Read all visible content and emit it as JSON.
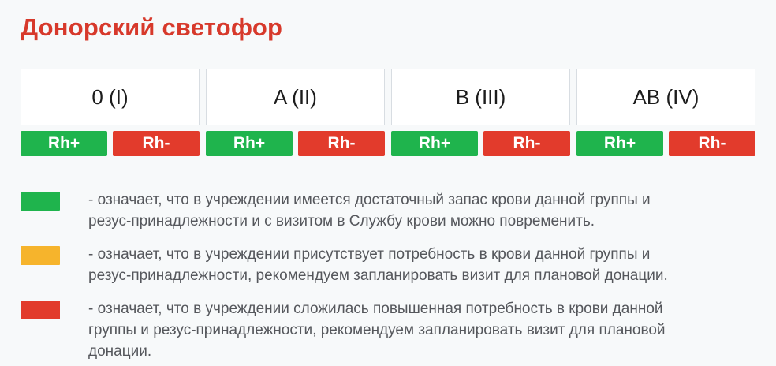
{
  "title": "Донорский светофор",
  "colors": {
    "green": "#1fb44d",
    "yellow": "#f6b42c",
    "red": "#e23b2c",
    "title": "#d7392b",
    "legend_text": "#55575c",
    "box_border": "#d8dde2",
    "background": "#f7f9fa",
    "group_label": "#1c1c1c",
    "cell_text": "#ffffff"
  },
  "blood_groups": [
    {
      "label": "0 (I)",
      "cells": [
        {
          "label": "Rh+",
          "status": "green"
        },
        {
          "label": "Rh-",
          "status": "red"
        }
      ]
    },
    {
      "label": "A (II)",
      "cells": [
        {
          "label": "Rh+",
          "status": "green"
        },
        {
          "label": "Rh-",
          "status": "red"
        }
      ]
    },
    {
      "label": "B (III)",
      "cells": [
        {
          "label": "Rh+",
          "status": "green"
        },
        {
          "label": "Rh-",
          "status": "red"
        }
      ]
    },
    {
      "label": "AB (IV)",
      "cells": [
        {
          "label": "Rh+",
          "status": "green"
        },
        {
          "label": "Rh-",
          "status": "red"
        }
      ]
    }
  ],
  "legend": [
    {
      "status": "green",
      "lines": [
        "- означает, что в учреждении имеется достаточный запас крови данной группы и",
        "резус-принадлежности и с визитом в Службу крови можно повременить."
      ]
    },
    {
      "status": "yellow",
      "lines": [
        "- означает, что в учреждении присутствует потребность в крови данной группы и",
        "резус-принадлежности, рекомендуем запланировать визит для плановой донации."
      ]
    },
    {
      "status": "red",
      "lines": [
        "- означает, что в учреждении сложилась повышенная потребность в крови данной",
        "группы и резус-принадлежности, рекомендуем запланировать визит для плановой",
        "донации."
      ]
    }
  ]
}
